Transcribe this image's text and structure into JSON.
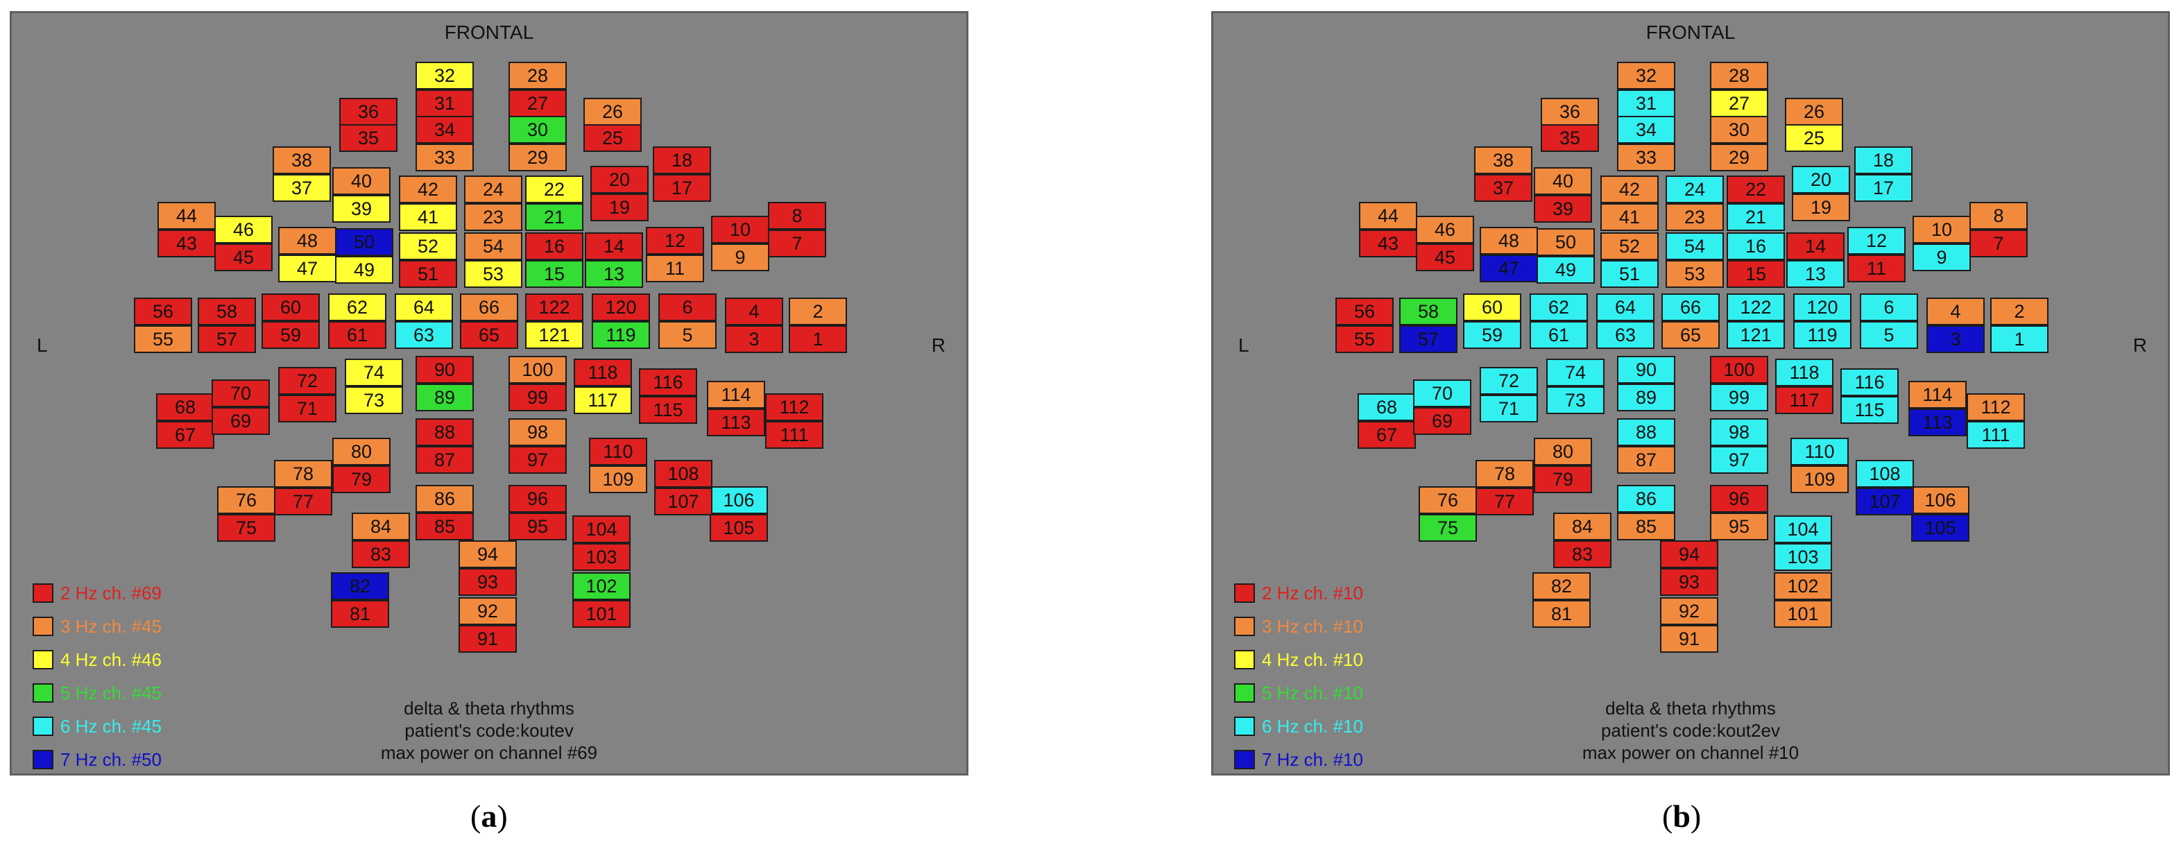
{
  "colors": {
    "2Hz": "#e02020",
    "3Hz": "#f28a3e",
    "4Hz": "#ffff33",
    "5Hz": "#33dd33",
    "6Hz": "#33f0f0",
    "7Hz": "#1010cc"
  },
  "panels": [
    {
      "id": "a",
      "frontal": "FRONTAL",
      "left_label": "L",
      "right_label": "R",
      "legend": [
        {
          "text": "2 Hz ch. #69",
          "color": "2Hz"
        },
        {
          "text": "3 Hz ch. #45",
          "color": "3Hz"
        },
        {
          "text": "4 Hz ch. #46",
          "color": "4Hz"
        },
        {
          "text": "5 Hz ch. #45",
          "color": "5Hz"
        },
        {
          "text": "6 Hz ch. #45",
          "color": "6Hz"
        },
        {
          "text": "7 Hz ch. #50",
          "color": "7Hz"
        }
      ],
      "footer": [
        "delta & theta rhythms",
        "patient's code:koutev",
        "max power on channel #69"
      ],
      "fig_label": "a",
      "channels": {
        "1": "2Hz",
        "2": "3Hz",
        "3": "2Hz",
        "4": "2Hz",
        "5": "3Hz",
        "6": "2Hz",
        "7": "2Hz",
        "8": "2Hz",
        "9": "3Hz",
        "10": "2Hz",
        "11": "3Hz",
        "12": "2Hz",
        "13": "5Hz",
        "14": "2Hz",
        "15": "5Hz",
        "16": "2Hz",
        "17": "2Hz",
        "18": "2Hz",
        "19": "2Hz",
        "20": "2Hz",
        "21": "5Hz",
        "22": "4Hz",
        "23": "3Hz",
        "24": "3Hz",
        "25": "2Hz",
        "26": "3Hz",
        "27": "2Hz",
        "28": "3Hz",
        "29": "3Hz",
        "30": "5Hz",
        "31": "2Hz",
        "32": "4Hz",
        "33": "3Hz",
        "34": "2Hz",
        "35": "2Hz",
        "36": "2Hz",
        "37": "4Hz",
        "38": "3Hz",
        "39": "4Hz",
        "40": "3Hz",
        "41": "4Hz",
        "42": "3Hz",
        "43": "2Hz",
        "44": "3Hz",
        "45": "2Hz",
        "46": "4Hz",
        "47": "4Hz",
        "48": "3Hz",
        "49": "4Hz",
        "50": "7Hz",
        "51": "2Hz",
        "52": "4Hz",
        "53": "4Hz",
        "54": "3Hz",
        "55": "3Hz",
        "56": "2Hz",
        "57": "2Hz",
        "58": "2Hz",
        "59": "2Hz",
        "60": "2Hz",
        "61": "2Hz",
        "62": "4Hz",
        "63": "6Hz",
        "64": "4Hz",
        "65": "2Hz",
        "66": "3Hz",
        "67": "2Hz",
        "68": "2Hz",
        "69": "2Hz",
        "70": "2Hz",
        "71": "2Hz",
        "72": "2Hz",
        "73": "4Hz",
        "74": "4Hz",
        "75": "2Hz",
        "76": "3Hz",
        "77": "2Hz",
        "78": "3Hz",
        "79": "2Hz",
        "80": "3Hz",
        "81": "2Hz",
        "82": "7Hz",
        "83": "2Hz",
        "84": "3Hz",
        "85": "2Hz",
        "86": "3Hz",
        "87": "2Hz",
        "88": "2Hz",
        "89": "5Hz",
        "90": "2Hz",
        "91": "2Hz",
        "92": "3Hz",
        "93": "2Hz",
        "94": "3Hz",
        "95": "2Hz",
        "96": "2Hz",
        "97": "2Hz",
        "98": "3Hz",
        "99": "2Hz",
        "100": "3Hz",
        "101": "2Hz",
        "102": "5Hz",
        "103": "2Hz",
        "104": "2Hz",
        "105": "2Hz",
        "106": "6Hz",
        "107": "2Hz",
        "108": "2Hz",
        "109": "3Hz",
        "110": "2Hz",
        "111": "2Hz",
        "112": "2Hz",
        "113": "2Hz",
        "114": "3Hz",
        "115": "2Hz",
        "116": "2Hz",
        "117": "4Hz",
        "118": "2Hz",
        "119": "5Hz",
        "120": "2Hz",
        "121": "4Hz",
        "122": "2Hz"
      }
    },
    {
      "id": "b",
      "frontal": "FRONTAL",
      "left_label": "L",
      "right_label": "R",
      "legend": [
        {
          "text": "2 Hz ch. #10",
          "color": "2Hz"
        },
        {
          "text": "3 Hz ch. #10",
          "color": "3Hz"
        },
        {
          "text": "4 Hz ch. #10",
          "color": "4Hz"
        },
        {
          "text": "5 Hz ch. #10",
          "color": "5Hz"
        },
        {
          "text": "6 Hz ch. #10",
          "color": "6Hz"
        },
        {
          "text": "7 Hz ch. #10",
          "color": "7Hz"
        }
      ],
      "footer": [
        "delta & theta rhythms",
        "patient's code:kout2ev",
        "max power on channel #10"
      ],
      "fig_label": "b",
      "channels": {
        "1": "6Hz",
        "2": "3Hz",
        "3": "7Hz",
        "4": "3Hz",
        "5": "6Hz",
        "6": "6Hz",
        "7": "2Hz",
        "8": "3Hz",
        "9": "6Hz",
        "10": "3Hz",
        "11": "2Hz",
        "12": "6Hz",
        "13": "6Hz",
        "14": "2Hz",
        "15": "2Hz",
        "16": "6Hz",
        "17": "6Hz",
        "18": "6Hz",
        "19": "3Hz",
        "20": "6Hz",
        "21": "6Hz",
        "22": "2Hz",
        "23": "3Hz",
        "24": "6Hz",
        "25": "4Hz",
        "26": "3Hz",
        "27": "4Hz",
        "28": "3Hz",
        "29": "3Hz",
        "30": "3Hz",
        "31": "6Hz",
        "32": "3Hz",
        "33": "3Hz",
        "34": "6Hz",
        "35": "2Hz",
        "36": "3Hz",
        "37": "2Hz",
        "38": "3Hz",
        "39": "2Hz",
        "40": "3Hz",
        "41": "3Hz",
        "42": "3Hz",
        "43": "2Hz",
        "44": "3Hz",
        "45": "2Hz",
        "46": "3Hz",
        "47": "7Hz",
        "48": "3Hz",
        "49": "6Hz",
        "50": "3Hz",
        "51": "6Hz",
        "52": "3Hz",
        "53": "3Hz",
        "54": "6Hz",
        "55": "2Hz",
        "56": "2Hz",
        "57": "7Hz",
        "58": "5Hz",
        "59": "6Hz",
        "60": "4Hz",
        "61": "6Hz",
        "62": "6Hz",
        "63": "6Hz",
        "64": "6Hz",
        "65": "3Hz",
        "66": "6Hz",
        "67": "2Hz",
        "68": "6Hz",
        "69": "2Hz",
        "70": "6Hz",
        "71": "6Hz",
        "72": "6Hz",
        "73": "6Hz",
        "74": "6Hz",
        "75": "5Hz",
        "76": "3Hz",
        "77": "2Hz",
        "78": "3Hz",
        "79": "2Hz",
        "80": "3Hz",
        "81": "3Hz",
        "82": "3Hz",
        "83": "2Hz",
        "84": "3Hz",
        "85": "3Hz",
        "86": "6Hz",
        "87": "3Hz",
        "88": "6Hz",
        "89": "6Hz",
        "90": "6Hz",
        "91": "3Hz",
        "92": "3Hz",
        "93": "2Hz",
        "94": "2Hz",
        "95": "3Hz",
        "96": "2Hz",
        "97": "6Hz",
        "98": "6Hz",
        "99": "6Hz",
        "100": "2Hz",
        "101": "3Hz",
        "102": "3Hz",
        "103": "6Hz",
        "104": "6Hz",
        "105": "7Hz",
        "106": "3Hz",
        "107": "7Hz",
        "108": "6Hz",
        "109": "3Hz",
        "110": "6Hz",
        "111": "6Hz",
        "112": "3Hz",
        "113": "7Hz",
        "114": "3Hz",
        "115": "6Hz",
        "116": "6Hz",
        "117": "2Hz",
        "118": "6Hz",
        "119": "6Hz",
        "120": "6Hz",
        "121": "6Hz",
        "122": "6Hz"
      }
    }
  ]
}
